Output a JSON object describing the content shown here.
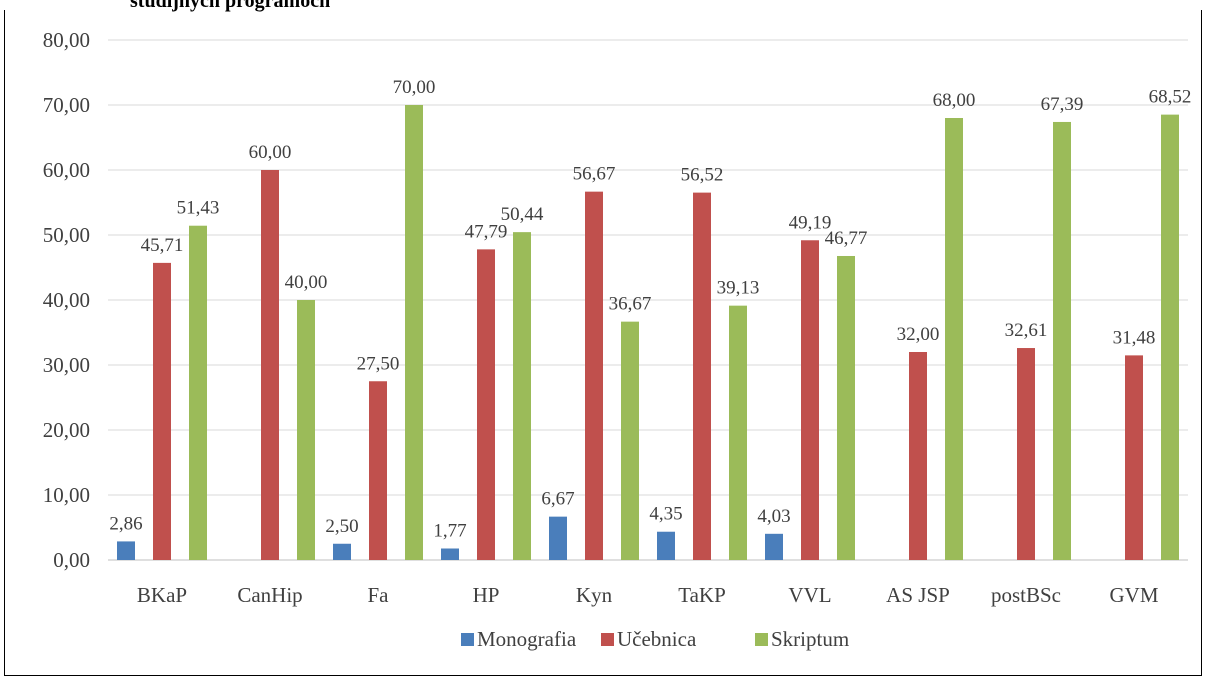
{
  "page": {
    "title": "študijných programoch"
  },
  "chart_data": {
    "type": "bar",
    "categories": [
      "BKaP",
      "CanHip",
      "Fa",
      "HP",
      "Kyn",
      "TaKP",
      "VVL",
      "AS JSP",
      "postBSc",
      "GVM"
    ],
    "series": [
      {
        "name": "Monografia",
        "color": "#4a7ebb",
        "values": [
          2.86,
          null,
          2.5,
          1.77,
          6.67,
          4.35,
          4.03,
          null,
          null,
          null
        ],
        "labels": [
          "2,86",
          "",
          "2,50",
          "1,77",
          "6,67",
          "4,35",
          "4,03",
          "",
          "",
          ""
        ]
      },
      {
        "name": "Učebnica",
        "color": "#c0504d",
        "values": [
          45.71,
          60.0,
          27.5,
          47.79,
          56.67,
          56.52,
          49.19,
          32.0,
          32.61,
          31.48
        ],
        "labels": [
          "45,71",
          "60,00",
          "27,50",
          "47,79",
          "56,67",
          "56,52",
          "49,19",
          "32,00",
          "32,61",
          "31,48"
        ]
      },
      {
        "name": "Skriptum",
        "color": "#9bbb59",
        "values": [
          51.43,
          40.0,
          70.0,
          50.44,
          36.67,
          39.13,
          46.77,
          68.0,
          67.39,
          68.52
        ],
        "labels": [
          "51,43",
          "40,00",
          "70,00",
          "50,44",
          "36,67",
          "39,13",
          "46,77",
          "68,00",
          "67,39",
          "68,52"
        ]
      }
    ],
    "ylim": [
      0,
      80
    ],
    "yticks": [
      "0,00",
      "10,00",
      "20,00",
      "30,00",
      "40,00",
      "50,00",
      "60,00",
      "70,00",
      "80,00"
    ],
    "grid": true,
    "legend_position": "bottom"
  }
}
